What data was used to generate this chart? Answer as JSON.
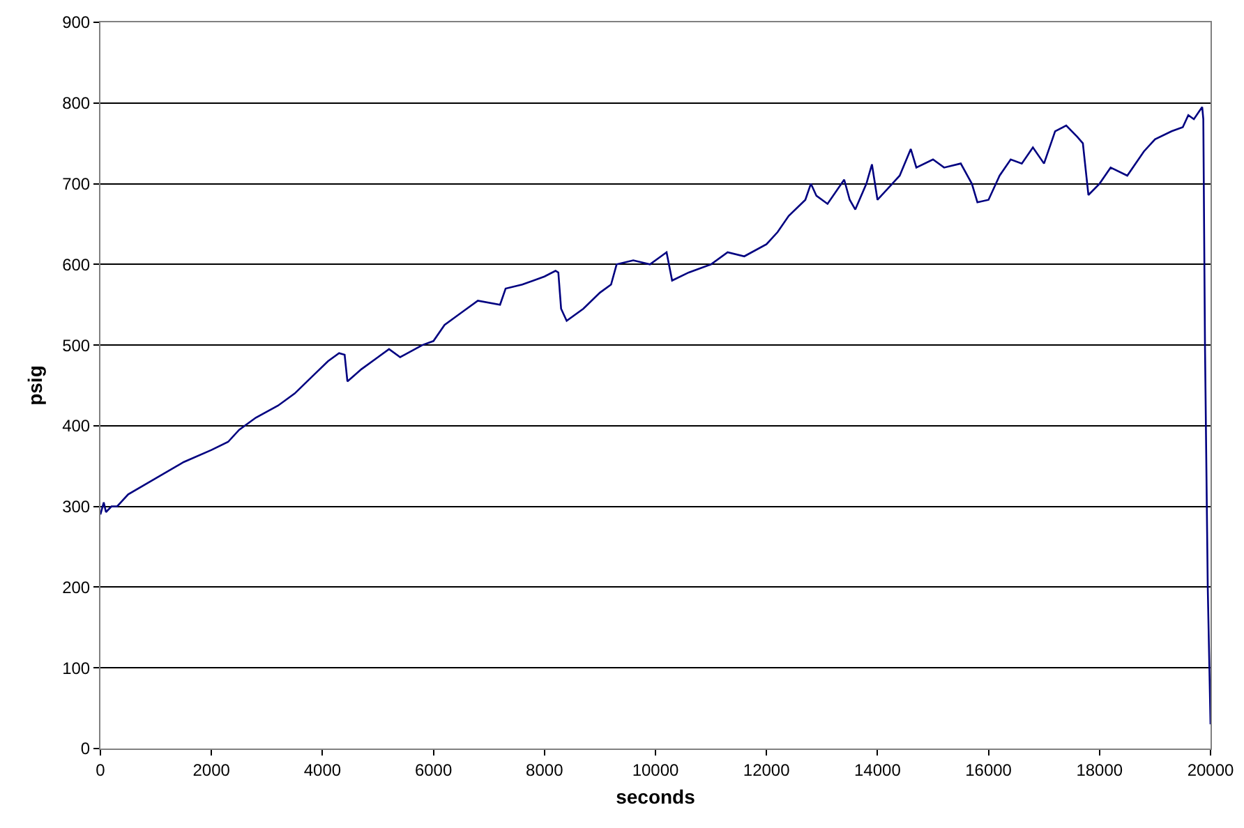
{
  "chart_data": {
    "type": "line",
    "xlabel": "seconds",
    "ylabel": "psig",
    "x": [
      0,
      60,
      100,
      200,
      300,
      500,
      1000,
      1500,
      2000,
      2300,
      2500,
      2800,
      3200,
      3500,
      3800,
      4100,
      4300,
      4400,
      4450,
      4700,
      5000,
      5200,
      5400,
      5800,
      6000,
      6200,
      6500,
      6800,
      7200,
      7300,
      7600,
      8000,
      8200,
      8250,
      8300,
      8400,
      8700,
      9000,
      9200,
      9300,
      9600,
      9900,
      10100,
      10200,
      10300,
      10600,
      11000,
      11300,
      11600,
      12000,
      12200,
      12400,
      12700,
      12800,
      12900,
      13100,
      13400,
      13500,
      13600,
      13800,
      13900,
      14000,
      14200,
      14400,
      14600,
      14700,
      15000,
      15200,
      15500,
      15700,
      15800,
      16000,
      16200,
      16400,
      16600,
      16800,
      17000,
      17200,
      17400,
      17600,
      17700,
      17800,
      18000,
      18200,
      18500,
      18800,
      19000,
      19300,
      19500,
      19600,
      19700,
      19800,
      19850,
      19870,
      19900,
      19950,
      20000
    ],
    "series": [
      {
        "color": "#000080",
        "values": [
          290,
          305,
          293,
          300,
          300,
          315,
          335,
          355,
          370,
          380,
          395,
          410,
          425,
          440,
          460,
          480,
          490,
          488,
          455,
          470,
          485,
          495,
          485,
          500,
          505,
          525,
          540,
          555,
          550,
          570,
          575,
          585,
          592,
          590,
          545,
          530,
          545,
          565,
          575,
          600,
          605,
          600,
          610,
          615,
          580,
          590,
          600,
          615,
          610,
          625,
          640,
          660,
          680,
          700,
          685,
          675,
          705,
          680,
          668,
          700,
          724,
          680,
          695,
          710,
          743,
          720,
          730,
          720,
          725,
          700,
          677,
          680,
          710,
          730,
          725,
          745,
          725,
          765,
          772,
          758,
          750,
          686,
          700,
          720,
          710,
          740,
          755,
          765,
          770,
          785,
          780,
          790,
          795,
          780,
          500,
          200,
          30
        ]
      }
    ],
    "xlim": [
      0,
      20000
    ],
    "xticks": [
      0,
      2000,
      4000,
      6000,
      8000,
      10000,
      12000,
      14000,
      16000,
      18000,
      20000
    ],
    "ylim": [
      0,
      900
    ],
    "yticks": [
      0,
      100,
      200,
      300,
      400,
      500,
      600,
      700,
      800,
      900
    ],
    "grid": "y",
    "marker": "none",
    "line_style": "solid"
  }
}
